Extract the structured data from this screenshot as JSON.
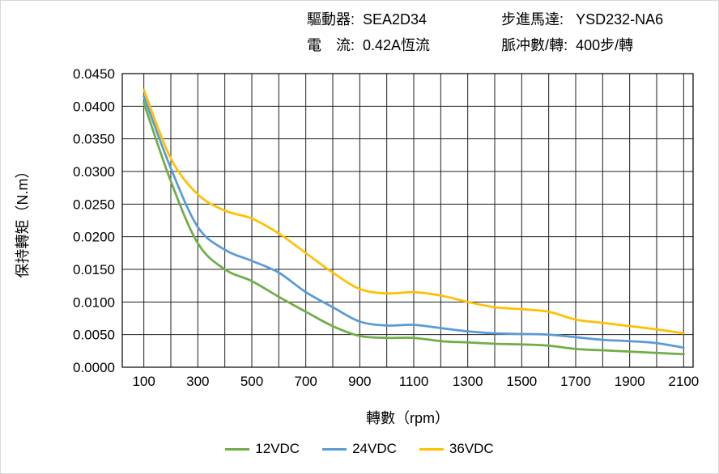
{
  "header": {
    "driver_label": "驅動器:",
    "driver_value": "SEA2D34",
    "current_label": "電　流:",
    "current_value": "0.42A恆流",
    "motor_label": "步進馬達:",
    "motor_value": "YSD232-NA6",
    "pulses_label": "脈冲數/轉:",
    "pulses_value": "400步/轉"
  },
  "chart_data": {
    "type": "line",
    "x": [
      100,
      200,
      300,
      400,
      500,
      600,
      700,
      800,
      900,
      1000,
      1100,
      1200,
      1300,
      1400,
      1500,
      1600,
      1700,
      1800,
      1900,
      2000,
      2100
    ],
    "series": [
      {
        "name": "12VDC",
        "color": "#70AD47",
        "values": [
          0.0405,
          0.0285,
          0.019,
          0.015,
          0.0132,
          0.0108,
          0.0085,
          0.0063,
          0.0048,
          0.0045,
          0.0045,
          0.004,
          0.0038,
          0.0036,
          0.0035,
          0.0033,
          0.0028,
          0.0026,
          0.0024,
          0.0022,
          0.002
        ]
      },
      {
        "name": "24VDC",
        "color": "#5B9BD5",
        "values": [
          0.0415,
          0.0305,
          0.0215,
          0.018,
          0.0163,
          0.0145,
          0.0115,
          0.0092,
          0.007,
          0.0064,
          0.0065,
          0.006,
          0.0055,
          0.0052,
          0.0051,
          0.005,
          0.0046,
          0.0042,
          0.004,
          0.0037,
          0.003
        ]
      },
      {
        "name": "36VDC",
        "color": "#FFC000",
        "values": [
          0.0425,
          0.032,
          0.0265,
          0.024,
          0.0228,
          0.0205,
          0.0175,
          0.0145,
          0.012,
          0.0113,
          0.0115,
          0.011,
          0.01,
          0.0092,
          0.0089,
          0.0085,
          0.0073,
          0.0068,
          0.0063,
          0.0058,
          0.0052
        ]
      }
    ],
    "xlabel": "轉數（rpm）",
    "ylabel": "保持轉矩（N.m）",
    "xlim": [
      20,
      2135
    ],
    "ylim": [
      0,
      0.045
    ],
    "x_tick_labels": [
      100,
      300,
      500,
      700,
      900,
      1100,
      1300,
      1500,
      1700,
      1900,
      2100
    ],
    "y_ticks": [
      0,
      0.005,
      0.01,
      0.015,
      0.02,
      0.025,
      0.03,
      0.035,
      0.04,
      0.045
    ],
    "y_tick_decimals": 4,
    "grid": true,
    "grid_color": "#1f1f1f",
    "legend_position": "bottom"
  }
}
